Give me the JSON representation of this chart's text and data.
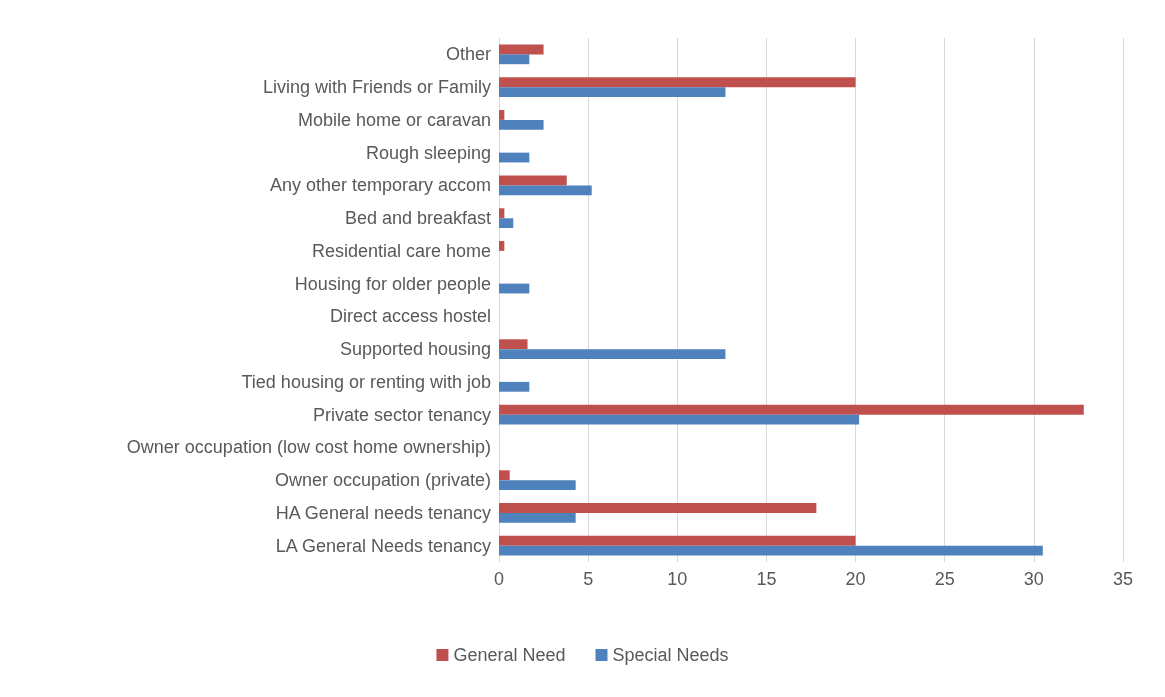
{
  "chart_data": {
    "type": "bar",
    "orientation": "horizontal",
    "categories": [
      "Other",
      "Living with Friends or Family",
      "Mobile home or caravan",
      "Rough sleeping",
      "Any other temporary accom",
      "Bed and breakfast",
      "Residential care home",
      "Housing for older people",
      "Direct access hostel",
      "Supported housing",
      "Tied housing or renting with job",
      "Private sector tenancy",
      "Owner occupation (low cost home ownership)",
      "Owner occupation (private)",
      "HA General needs tenancy",
      "LA General Needs tenancy"
    ],
    "series": [
      {
        "name": "General Need",
        "color": "#c0504d",
        "values": [
          2.5,
          20,
          0.3,
          null,
          3.8,
          0.3,
          0.3,
          null,
          null,
          1.6,
          null,
          32.8,
          null,
          0.6,
          17.8,
          20
        ]
      },
      {
        "name": "Special Needs",
        "color": "#4f81bd",
        "values": [
          1.7,
          12.7,
          2.5,
          1.7,
          5.2,
          0.8,
          null,
          1.7,
          null,
          12.7,
          1.7,
          20.2,
          null,
          4.3,
          4.3,
          30.5
        ]
      }
    ],
    "xlim": [
      0,
      35
    ],
    "xticks": [
      0,
      5,
      10,
      15,
      20,
      25,
      30,
      35
    ],
    "grid": "x",
    "legend": "bottom"
  }
}
